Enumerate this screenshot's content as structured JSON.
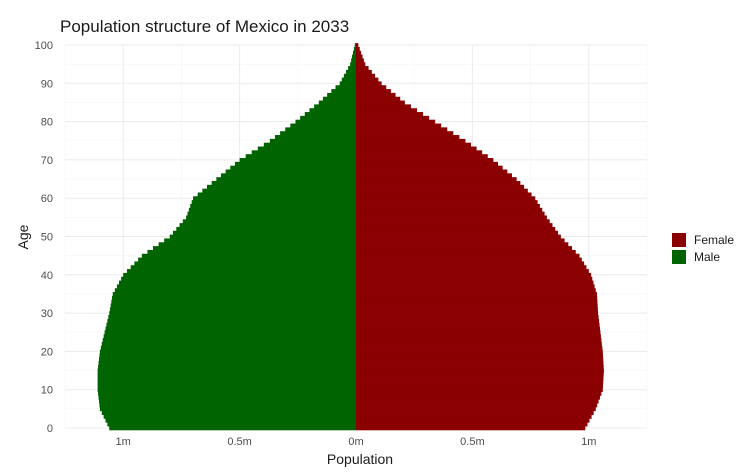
{
  "chart_data": {
    "type": "bar",
    "orientation": "horizontal",
    "title": "Population structure of Mexico in 2033",
    "xlabel": "Population",
    "ylabel": "Age",
    "x_ticks": [
      {
        "value": -1000000,
        "label": "1m"
      },
      {
        "value": -500000,
        "label": "0.5m"
      },
      {
        "value": 0,
        "label": "0m"
      },
      {
        "value": 500000,
        "label": "0.5m"
      },
      {
        "value": 1000000,
        "label": "1m"
      }
    ],
    "y_ticks": [
      0,
      10,
      20,
      30,
      40,
      50,
      60,
      70,
      80,
      90,
      100
    ],
    "xlim": [
      -1250000,
      1250000
    ],
    "ylim": [
      0,
      100
    ],
    "grid": true,
    "legend_position": "right",
    "legend": [
      {
        "name": "Female",
        "color": "#8b0000"
      },
      {
        "name": "Male",
        "color": "#006400"
      }
    ],
    "age_points": [
      0,
      5,
      10,
      15,
      20,
      25,
      30,
      35,
      40,
      45,
      50,
      55,
      60,
      65,
      70,
      75,
      80,
      85,
      90,
      95,
      100
    ],
    "female_points": [
      985000,
      1030000,
      1060000,
      1065000,
      1060000,
      1050000,
      1040000,
      1035000,
      1010000,
      960000,
      880000,
      820000,
      770000,
      690000,
      590000,
      470000,
      340000,
      210000,
      110000,
      40000,
      10000
    ],
    "male_points": [
      1060000,
      1100000,
      1110000,
      1110000,
      1100000,
      1080000,
      1060000,
      1045000,
      1000000,
      920000,
      800000,
      730000,
      700000,
      600000,
      500000,
      370000,
      260000,
      160000,
      70000,
      25000,
      5000
    ]
  }
}
